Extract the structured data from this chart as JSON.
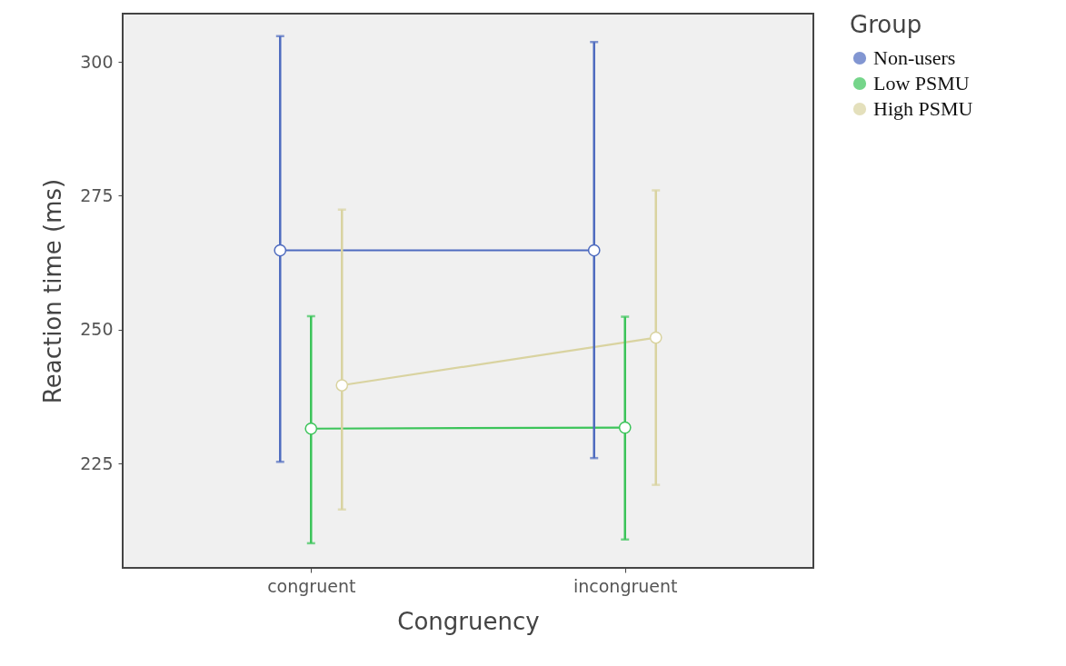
{
  "chart_data": {
    "type": "line",
    "xlabel": "Congruency",
    "ylabel": "Reaction time (ms)",
    "legend_title": "Group",
    "categories": [
      "congruent",
      "incongruent"
    ],
    "series": [
      {
        "name": "Non-users",
        "color": "#4e6bbf",
        "values": [
          264.8,
          264.8
        ],
        "errors": [
          [
            225.3,
            304.8
          ],
          [
            226.0,
            303.7
          ]
        ]
      },
      {
        "name": "Low PSMU",
        "color": "#3cc45a",
        "values": [
          231.5,
          231.7
        ],
        "errors": [
          [
            210.1,
            252.5
          ],
          [
            210.8,
            252.4
          ]
        ]
      },
      {
        "name": "High PSMU",
        "color": "#d9d3a0",
        "values": [
          239.6,
          248.5
        ],
        "errors": [
          [
            216.4,
            272.4
          ],
          [
            221.0,
            276.0
          ]
        ]
      }
    ],
    "ylim": [
      205.5,
      309
    ],
    "yticks": [
      225,
      250,
      275,
      300
    ],
    "grid": false,
    "legend": "right",
    "marker": "circle",
    "line_style": "solid"
  }
}
